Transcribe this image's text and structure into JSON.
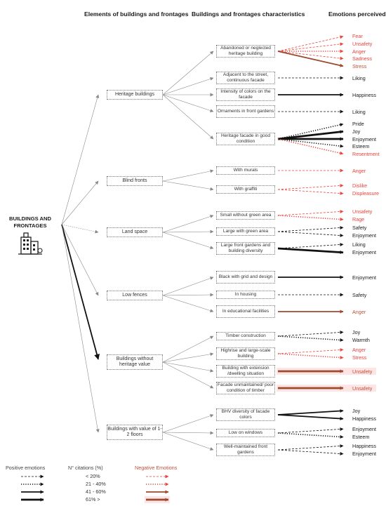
{
  "headers": {
    "elements": "Elements of buildings and frontages",
    "characteristics": "Buildings and frontages characteristics",
    "emotions": "Emotions perceived"
  },
  "root_label_line1": "BUILDINGS AND",
  "root_label_line2": "FRONTAGES",
  "icon": "buildings-icon",
  "colors": {
    "positive": "#111111",
    "negative_dashed": "#e8453c",
    "negative_solid": "#9b4a2e",
    "highlight": "#fde5e5"
  },
  "elements": [
    {
      "label": "Heritage buildings"
    },
    {
      "label": "Blind fronts"
    },
    {
      "label": "Land space"
    },
    {
      "label": "Low fences"
    },
    {
      "label": "Buildings without heritage value"
    },
    {
      "label": "Buildings with value of 1-2 floors"
    }
  ],
  "characteristics": [
    {
      "label": "Abandoned or neglected heritage building",
      "element": 0,
      "emotions": [
        {
          "label": "Fear",
          "polarity": "negative",
          "level": 1
        },
        {
          "label": "Unsafety",
          "polarity": "negative",
          "level": 1
        },
        {
          "label": "Anger",
          "polarity": "negative",
          "level": 2
        },
        {
          "label": "Sadness",
          "polarity": "negative",
          "level": 1
        },
        {
          "label": "Stress",
          "polarity": "negative",
          "level": 3
        }
      ]
    },
    {
      "label": "Adjacent to the street, continuous facade",
      "element": 0,
      "emotions": [
        {
          "label": "Liking",
          "polarity": "positive",
          "level": 1
        }
      ]
    },
    {
      "label": "Intensity of colors on the facade",
      "element": 0,
      "emotions": [
        {
          "label": "Happiness",
          "polarity": "positive",
          "level": 3
        }
      ]
    },
    {
      "label": "Ornaments in front gardens",
      "element": 0,
      "emotions": [
        {
          "label": "Liking",
          "polarity": "positive",
          "level": 1
        }
      ]
    },
    {
      "label": "Heritage facade in good condition",
      "element": 0,
      "emotions": [
        {
          "label": "Pride",
          "polarity": "positive",
          "level": 2
        },
        {
          "label": "Joy",
          "polarity": "positive",
          "level": 4
        },
        {
          "label": "Enjoyment",
          "polarity": "positive",
          "level": 4
        },
        {
          "label": "Esteem",
          "polarity": "positive",
          "level": 2
        },
        {
          "label": "Resentment",
          "polarity": "negative",
          "level": 2
        }
      ]
    },
    {
      "label": "With murals",
      "element": 1,
      "emotions": [
        {
          "label": "Anger",
          "polarity": "negative",
          "level": 1
        }
      ]
    },
    {
      "label": "With graffiti",
      "element": 1,
      "emotions": [
        {
          "label": "Dislike",
          "polarity": "negative",
          "level": 1
        },
        {
          "label": "Displeasure",
          "polarity": "negative",
          "level": 1
        }
      ]
    },
    {
      "label": "Small without green area",
      "element": 2,
      "emotions": [
        {
          "label": "Unsafety",
          "polarity": "negative",
          "level": 1
        },
        {
          "label": "Rage",
          "polarity": "negative",
          "level": 2
        }
      ]
    },
    {
      "label": "Large with green area",
      "element": 2,
      "emotions": [
        {
          "label": "Safety",
          "polarity": "positive",
          "level": 1
        },
        {
          "label": "Enjoyment",
          "polarity": "positive",
          "level": 1
        }
      ]
    },
    {
      "label": "Large front gardens and building diversity",
      "element": 2,
      "emotions": [
        {
          "label": "Liking",
          "polarity": "positive",
          "level": 1
        },
        {
          "label": "Enjoyment",
          "polarity": "positive",
          "level": 4
        }
      ]
    },
    {
      "label": "Black with grid and design",
      "element": 3,
      "emotions": [
        {
          "label": "Enjoyment",
          "polarity": "positive",
          "level": 3
        }
      ]
    },
    {
      "label": "In housing",
      "element": 3,
      "emotions": [
        {
          "label": "Safety",
          "polarity": "positive",
          "level": 1
        }
      ]
    },
    {
      "label": "In educational facilities",
      "element": 3,
      "emotions": [
        {
          "label": "Anger",
          "polarity": "negative",
          "level": 3
        }
      ]
    },
    {
      "label": "Timber construction",
      "element": 4,
      "emotions": [
        {
          "label": "Joy",
          "polarity": "positive",
          "level": 1
        },
        {
          "label": "Warmth",
          "polarity": "positive",
          "level": 2
        }
      ]
    },
    {
      "label": "Highrise and large-scale building",
      "element": 4,
      "emotions": [
        {
          "label": "Anger",
          "polarity": "negative",
          "level": 1
        },
        {
          "label": "Stress",
          "polarity": "negative",
          "level": 2
        }
      ]
    },
    {
      "label": "Building with extension /dwelling situation",
      "element": 4,
      "emotions": [
        {
          "label": "Unsafety",
          "polarity": "negative",
          "level": 4
        }
      ]
    },
    {
      "label": "Facade unmaintained/ poor condition of timber",
      "element": 4,
      "emotions": [
        {
          "label": "Unsafety",
          "polarity": "negative",
          "level": 4
        }
      ]
    },
    {
      "label": "BHV diversity of facade colors",
      "element": 5,
      "emotions": [
        {
          "label": "Joy",
          "polarity": "positive",
          "level": 3
        },
        {
          "label": "Happiness",
          "polarity": "positive",
          "level": 3
        }
      ]
    },
    {
      "label": "Low on windows",
      "element": 5,
      "emotions": [
        {
          "label": "Enjoyment",
          "polarity": "positive",
          "level": 1
        },
        {
          "label": "Esteem",
          "polarity": "positive",
          "level": 2
        }
      ]
    },
    {
      "label": "Well-maintained front gardens",
      "element": 5,
      "emotions": [
        {
          "label": "Happiness",
          "polarity": "positive",
          "level": 1
        },
        {
          "label": "Enjoyment",
          "polarity": "positive",
          "level": 1
        }
      ]
    }
  ],
  "root_links": [
    1,
    1,
    1,
    1,
    4,
    1
  ],
  "legend": {
    "positive_title": "Positive emotions",
    "citations_title": "N° citations (%)",
    "negative_title": "Negative Emotions",
    "levels": [
      "< 20%",
      "21 - 40%",
      "41 - 60%",
      "61% >"
    ]
  }
}
